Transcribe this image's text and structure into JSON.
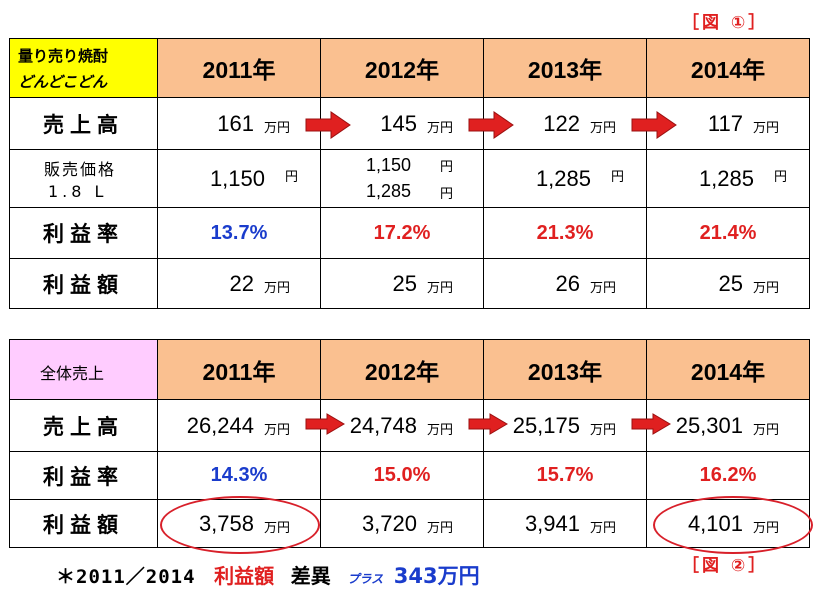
{
  "figure1_label": "［図 ①］",
  "figure2_label": "［図 ②］",
  "table1": {
    "corner_line1": "量り売り焼酎",
    "corner_line2": "どんどこどん",
    "years": [
      "2011年",
      "2012年",
      "2013年",
      "2014年"
    ],
    "sales_label": "売上高",
    "sales": [
      "161",
      "145",
      "122",
      "117"
    ],
    "sales_unit": "万円",
    "price_label_line1": "販売価格",
    "price_label_line2": "1.8 L",
    "price_2011": "1,150",
    "price_2012_a": "1,150",
    "price_2012_b": "1,285",
    "price_2013": "1,285",
    "price_2014": "1,285",
    "price_unit": "円",
    "margin_label": "利益率",
    "margins": [
      "13.7%",
      "17.2%",
      "21.3%",
      "21.4%"
    ],
    "profit_label": "利益額",
    "profits": [
      "22",
      "25",
      "26",
      "25"
    ],
    "profit_unit": "万円"
  },
  "table2": {
    "corner": "全体売上",
    "years": [
      "2011年",
      "2012年",
      "2013年",
      "2014年"
    ],
    "sales_label": "売上高",
    "sales": [
      "26,244",
      "24,748",
      "25,175",
      "25,301"
    ],
    "sales_unit": "万円",
    "margin_label": "利益率",
    "margins": [
      "14.3%",
      "15.0%",
      "15.7%",
      "16.2%"
    ],
    "profit_label": "利益額",
    "profits": [
      "3,758",
      "3,720",
      "3,941",
      "4,101"
    ],
    "profit_unit": "万円"
  },
  "footer": {
    "prefix": "＊2011／2014",
    "title": "利益額",
    "diff": "差異",
    "plus": "プラス",
    "amount": "343万円"
  },
  "colors": {
    "header_bg": "#fac090",
    "corner1_bg": "#ffff00",
    "corner2_bg": "#ffccff",
    "blue": "#1a3ccc",
    "red": "#e02020"
  }
}
